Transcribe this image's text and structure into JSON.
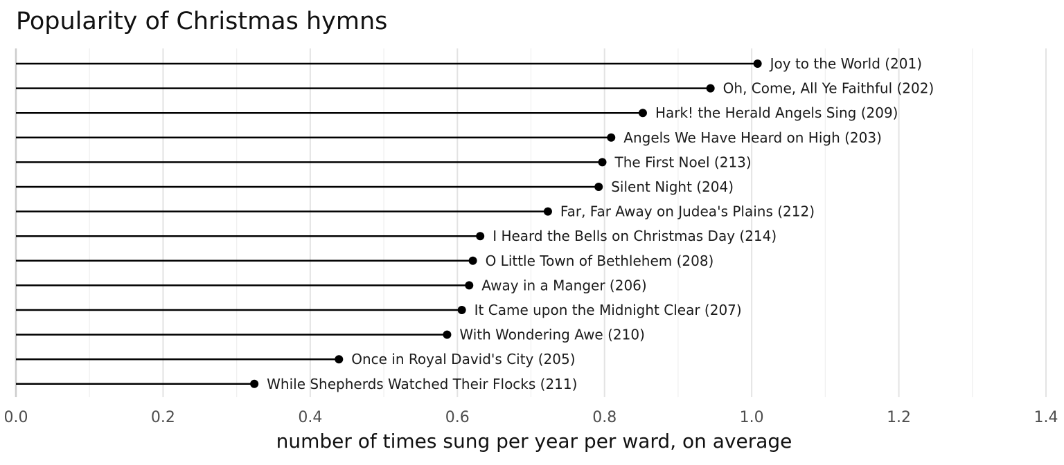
{
  "chart_data": {
    "type": "lollipop",
    "title": "Popularity of Christmas hymns",
    "xlabel": "number of times sung per year per ward, on average",
    "ylabel": "",
    "xlim": [
      0,
      1.4
    ],
    "x_ticks": [
      "0.0",
      "0.2",
      "0.4",
      "0.6",
      "0.8",
      "1.0",
      "1.2",
      "1.4"
    ],
    "x_tick_values": [
      0,
      0.2,
      0.4,
      0.6,
      0.8,
      1.0,
      1.2,
      1.4
    ],
    "grid": true,
    "colors": {
      "lollipop": "#000000",
      "grid_major": "#e3e3e3",
      "grid_minor": "#efefef",
      "zero_line": "#cccccc"
    },
    "labels": [
      "Joy to the World (201)",
      "Oh, Come, All Ye Faithful (202)",
      "Hark! the Herald Angels Sing (209)",
      "Angels We Have Heard on High (203)",
      "The First Noel (213)",
      "Silent Night (204)",
      "Far, Far Away on Judea's Plains (212)",
      "I Heard the Bells on Christmas Day (214)",
      "O Little Town of Bethlehem (208)",
      "Away in a Manger (206)",
      "It Came upon the Midnight Clear (207)",
      "With Wondering Awe (210)",
      "Once in Royal David's City (205)",
      "While Shepherds Watched Their Flocks (211)"
    ],
    "values": [
      1.008,
      0.944,
      0.852,
      0.809,
      0.797,
      0.792,
      0.723,
      0.631,
      0.621,
      0.616,
      0.606,
      0.586,
      0.439,
      0.324
    ]
  }
}
